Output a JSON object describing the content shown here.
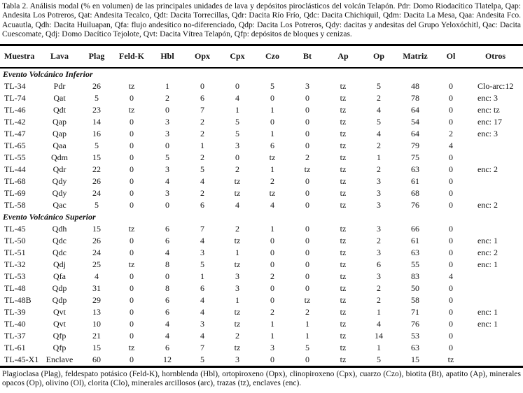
{
  "caption": "Tabla 2. Análisis modal (% en volumen) de las principales unidades de lava y depósitos piroclásticos del volcán Telapón. Pdr: Domo Riodacítico Tlatelpa, Qap: Andesita Los Potreros, Qat: Andesita Tecalco, Qdt: Dacita Torrecillas, Qdr: Dacita Río Frío, Qdc: Dacita Chichiquil, Qdm: Dacita La Mesa, Qaa: Andesita Fco. Acuautla, Qdh: Dacita Huiluapan, Qfa: flujo andesítico no-diferenciado, Qdp: Dacita Los Potreros, Qdy: dacitas y andesitas del Grupo Yeloxóchitl, Qac: Dacita Cuescomate, Qdj: Domo Dacítico Tejolote, Qvt: Dacita Vítrea Telapón, Qfp: depósitos de bloques y cenizas.",
  "table": {
    "columns": [
      "Muestra",
      "Lava",
      "Plag",
      "Feld-K",
      "Hbl",
      "Opx",
      "Cpx",
      "Czo",
      "Bt",
      "Ap",
      "Op",
      "Matriz",
      "Ol",
      "Otros"
    ],
    "sections": [
      {
        "title": "Evento Volcánico Inferior",
        "rows": [
          [
            "TL-34",
            "Pdr",
            "26",
            "tz",
            "1",
            "0",
            "0",
            "5",
            "3",
            "tz",
            "5",
            "48",
            "0",
            "Clo-arc:12"
          ],
          [
            "TL-74",
            "Qat",
            "5",
            "0",
            "2",
            "6",
            "4",
            "0",
            "0",
            "tz",
            "2",
            "78",
            "0",
            "enc: 3"
          ],
          [
            "TL-46",
            "Qdt",
            "23",
            "tz",
            "0",
            "7",
            "1",
            "1",
            "0",
            "tz",
            "4",
            "64",
            "0",
            "enc: tz"
          ],
          [
            "TL-42",
            "Qap",
            "14",
            "0",
            "3",
            "2",
            "5",
            "0",
            "0",
            "tz",
            "5",
            "54",
            "0",
            "enc: 17"
          ],
          [
            "TL-47",
            "Qap",
            "16",
            "0",
            "3",
            "2",
            "5",
            "1",
            "0",
            "tz",
            "4",
            "64",
            "2",
            "enc: 3"
          ],
          [
            "TL-65",
            "Qaa",
            "5",
            "0",
            "0",
            "1",
            "3",
            "6",
            "0",
            "tz",
            "2",
            "79",
            "4",
            ""
          ],
          [
            "TL-55",
            "Qdm",
            "15",
            "0",
            "5",
            "2",
            "0",
            "tz",
            "2",
            "tz",
            "1",
            "75",
            "0",
            ""
          ],
          [
            "TL-44",
            "Qdr",
            "22",
            "0",
            "3",
            "5",
            "2",
            "1",
            "tz",
            "tz",
            "2",
            "63",
            "0",
            "enc: 2"
          ],
          [
            "TL-68",
            "Qdy",
            "26",
            "0",
            "4",
            "4",
            "tz",
            "2",
            "0",
            "tz",
            "3",
            "61",
            "0",
            ""
          ],
          [
            "TL-69",
            "Qdy",
            "24",
            "0",
            "3",
            "2",
            "tz",
            "tz",
            "0",
            "tz",
            "3",
            "68",
            "0",
            ""
          ],
          [
            "TL-58",
            "Qac",
            "5",
            "0",
            "0",
            "6",
            "4",
            "4",
            "0",
            "tz",
            "3",
            "76",
            "0",
            "enc: 2"
          ]
        ]
      },
      {
        "title": "Evento Volcánico Superior",
        "rows": [
          [
            "TL-45",
            "Qdh",
            "15",
            "tz",
            "6",
            "7",
            "2",
            "1",
            "0",
            "tz",
            "3",
            "66",
            "0",
            ""
          ],
          [
            "TL-50",
            "Qdc",
            "26",
            "0",
            "6",
            "4",
            "tz",
            "0",
            "0",
            "tz",
            "2",
            "61",
            "0",
            "enc: 1"
          ],
          [
            "TL-51",
            "Qdc",
            "24",
            "0",
            "4",
            "3",
            "1",
            "0",
            "0",
            "tz",
            "3",
            "63",
            "0",
            "enc: 2"
          ],
          [
            "TL-32",
            "Qdj",
            "25",
            "tz",
            "8",
            "5",
            "tz",
            "0",
            "0",
            "tz",
            "6",
            "55",
            "0",
            "enc: 1"
          ],
          [
            "TL-53",
            "Qfa",
            "4",
            "0",
            "0",
            "1",
            "3",
            "2",
            "0",
            "tz",
            "3",
            "83",
            "4",
            ""
          ],
          [
            "TL-48",
            "Qdp",
            "31",
            "0",
            "8",
            "6",
            "3",
            "0",
            "0",
            "tz",
            "2",
            "50",
            "0",
            ""
          ],
          [
            "TL-48B",
            "Qdp",
            "29",
            "0",
            "6",
            "4",
            "1",
            "0",
            "tz",
            "tz",
            "2",
            "58",
            "0",
            ""
          ],
          [
            "TL-39",
            "Qvt",
            "13",
            "0",
            "6",
            "4",
            "tz",
            "2",
            "2",
            "tz",
            "1",
            "71",
            "0",
            "enc: 1"
          ],
          [
            "TL-40",
            "Qvt",
            "10",
            "0",
            "4",
            "3",
            "tz",
            "1",
            "1",
            "tz",
            "4",
            "76",
            "0",
            "enc: 1"
          ],
          [
            "TL-37",
            "Qfp",
            "21",
            "0",
            "4",
            "4",
            "2",
            "1",
            "1",
            "tz",
            "14",
            "53",
            "0",
            ""
          ],
          [
            "TL-61",
            "Qfp",
            "15",
            "tz",
            "6",
            "7",
            "tz",
            "3",
            "5",
            "tz",
            "1",
            "63",
            "0",
            ""
          ],
          [
            "TL-45-X1",
            "Enclave",
            "60",
            "0",
            "12",
            "5",
            "3",
            "0",
            "0",
            "tz",
            "5",
            "15",
            "tz",
            ""
          ]
        ]
      }
    ]
  },
  "footnote": "Plagioclasa (Plag), feldespato potásico (Feld-K), hornblenda (Hbl), ortopiroxeno (Opx), clinopiroxeno (Cpx), cuarzo (Czo), biotita (Bt), apatito (Ap), minerales opacos (Op), olivino (Ol), clorita (Clo), minerales arcillosos (arc), trazas (tz), enclaves (enc)."
}
